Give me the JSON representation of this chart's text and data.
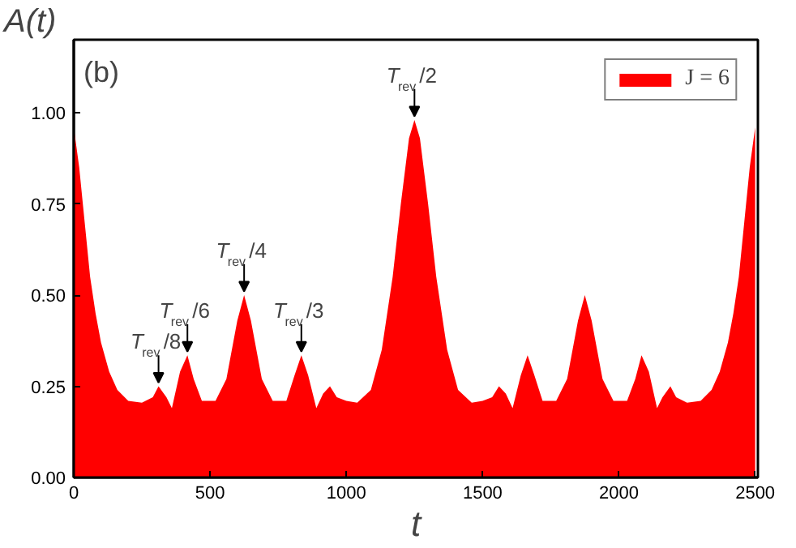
{
  "chart_data": {
    "type": "area",
    "ylabel": "A(t)",
    "xlabel": "t",
    "x": [
      0,
      20,
      40,
      60,
      80,
      100,
      130,
      160,
      200,
      250,
      290,
      311,
      340,
      360,
      390,
      417,
      440,
      470,
      520,
      560,
      600,
      625,
      650,
      690,
      730,
      780,
      810,
      835,
      860,
      890,
      915,
      940,
      965,
      1000,
      1040,
      1090,
      1130,
      1170,
      1200,
      1230,
      1250,
      1270,
      1300,
      1330,
      1370,
      1410,
      1460,
      1500,
      1535,
      1560,
      1585,
      1610,
      1640,
      1665,
      1690,
      1720,
      1770,
      1810,
      1850,
      1875,
      1900,
      1940,
      1980,
      2030,
      2060,
      2083,
      2110,
      2140,
      2160,
      2189,
      2210,
      2250,
      2300,
      2340,
      2370,
      2400,
      2420,
      2440,
      2460,
      2480,
      2500
    ],
    "series": [
      {
        "name": "J = 6",
        "color": "#ff0000",
        "values": [
          0.96,
          0.85,
          0.7,
          0.55,
          0.45,
          0.37,
          0.29,
          0.24,
          0.21,
          0.205,
          0.22,
          0.25,
          0.22,
          0.19,
          0.29,
          0.335,
          0.27,
          0.21,
          0.21,
          0.27,
          0.43,
          0.5,
          0.43,
          0.27,
          0.21,
          0.21,
          0.28,
          0.335,
          0.28,
          0.19,
          0.23,
          0.25,
          0.22,
          0.21,
          0.205,
          0.24,
          0.35,
          0.55,
          0.75,
          0.93,
          0.98,
          0.93,
          0.75,
          0.55,
          0.35,
          0.24,
          0.205,
          0.21,
          0.22,
          0.25,
          0.23,
          0.19,
          0.28,
          0.335,
          0.28,
          0.21,
          0.21,
          0.27,
          0.43,
          0.5,
          0.43,
          0.27,
          0.21,
          0.21,
          0.27,
          0.335,
          0.29,
          0.19,
          0.22,
          0.25,
          0.22,
          0.205,
          0.21,
          0.24,
          0.29,
          0.37,
          0.45,
          0.55,
          0.7,
          0.85,
          0.96
        ]
      }
    ],
    "xlim": [
      0,
      2510
    ],
    "ylim": [
      0,
      1.2
    ],
    "xticks": [
      0,
      500,
      1000,
      1500,
      2000,
      2500
    ],
    "yticks": [
      {
        "value": 0,
        "label": "0.00"
      },
      {
        "value": 0.25,
        "label": "0.25"
      },
      {
        "value": 0.5,
        "label": "0.50"
      },
      {
        "value": 0.75,
        "label": "0.75"
      },
      {
        "value": 1,
        "label": "1.00"
      }
    ],
    "legend": "top right",
    "grid": false,
    "annotations": [
      "(b)",
      {
        "text": "T$_{rev}$/8",
        "x": 311,
        "y": 0.25
      },
      {
        "text": "T$_{rev}$/6",
        "x": 417,
        "y": 0.335
      },
      {
        "text": "T$_{rev}$/4",
        "x": 625,
        "y": 0.5
      },
      {
        "text": "T$_{rev}$/3",
        "x": 835,
        "y": 0.335
      },
      {
        "text": "T$_{rev}$/2",
        "x": 1250,
        "y": 0.98
      }
    ]
  }
}
